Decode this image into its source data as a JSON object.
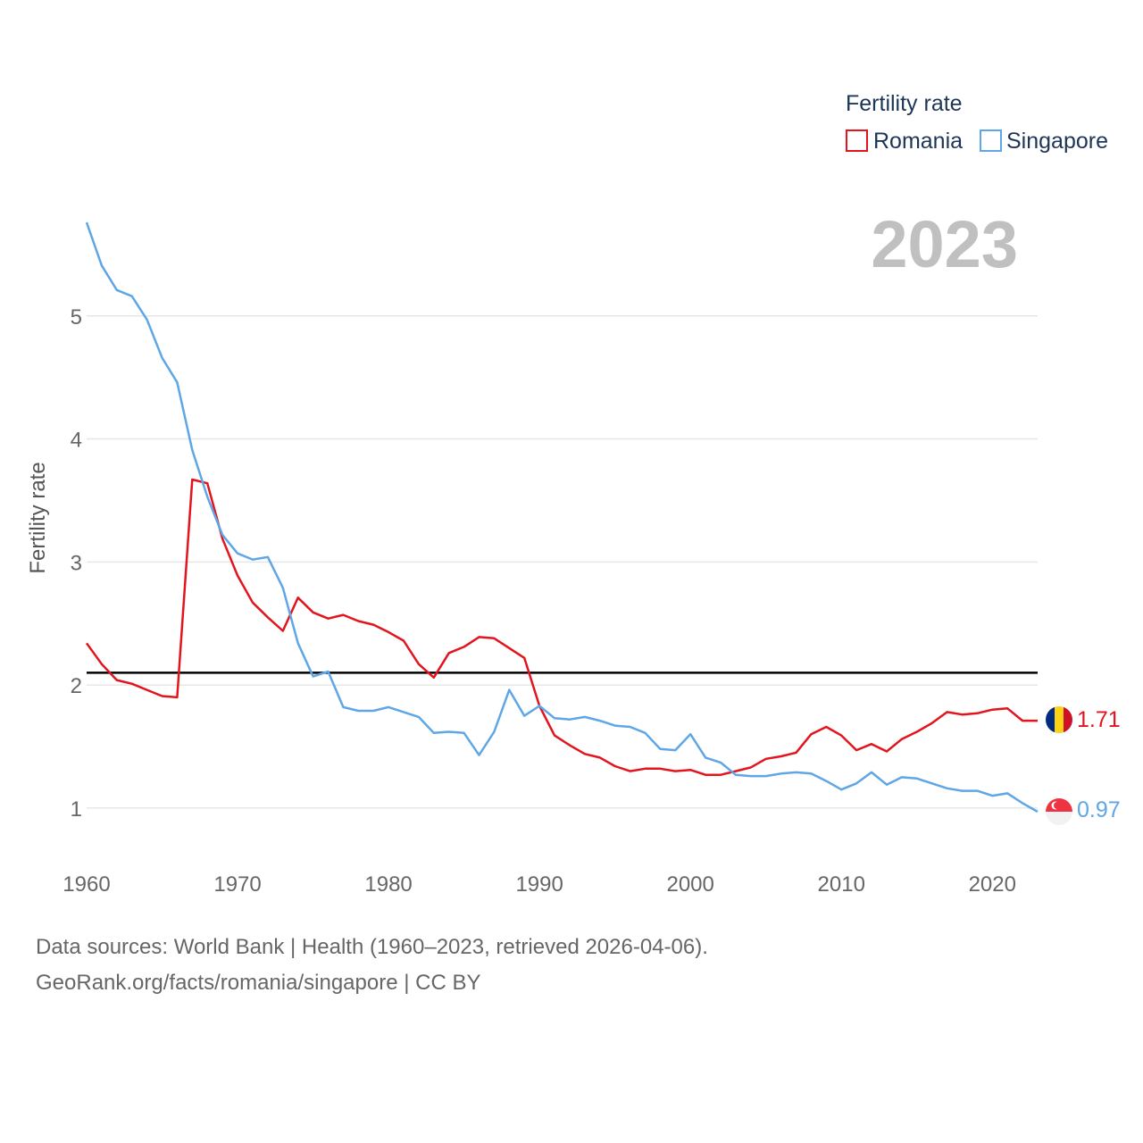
{
  "chart_data": {
    "type": "line",
    "ylabel": "Fertility rate",
    "xlabel": "",
    "legend_title": "Fertility rate",
    "legend_position": "top-right",
    "year_label": "2023",
    "xlim": [
      1960,
      2023
    ],
    "ylim": [
      0.6,
      6
    ],
    "x_ticks": [
      1960,
      1970,
      1980,
      1990,
      2000,
      2010,
      2020
    ],
    "y_ticks": [
      1,
      2,
      3,
      4,
      5
    ],
    "reference_line": 2.1,
    "x": [
      1960,
      1961,
      1962,
      1963,
      1964,
      1965,
      1966,
      1967,
      1968,
      1969,
      1970,
      1971,
      1972,
      1973,
      1974,
      1975,
      1976,
      1977,
      1978,
      1979,
      1980,
      1981,
      1982,
      1983,
      1984,
      1985,
      1986,
      1987,
      1988,
      1989,
      1990,
      1991,
      1992,
      1993,
      1994,
      1995,
      1996,
      1997,
      1998,
      1999,
      2000,
      2001,
      2002,
      2003,
      2004,
      2005,
      2006,
      2007,
      2008,
      2009,
      2010,
      2011,
      2012,
      2013,
      2014,
      2015,
      2016,
      2017,
      2018,
      2019,
      2020,
      2021,
      2022,
      2023
    ],
    "series": [
      {
        "name": "Romania",
        "color": "#e3141d",
        "end_label": "1.71",
        "values": [
          2.34,
          2.17,
          2.04,
          2.01,
          1.96,
          1.91,
          1.9,
          3.67,
          3.64,
          3.19,
          2.89,
          2.67,
          2.55,
          2.44,
          2.71,
          2.59,
          2.54,
          2.57,
          2.52,
          2.49,
          2.43,
          2.36,
          2.17,
          2.06,
          2.26,
          2.31,
          2.39,
          2.38,
          2.3,
          2.22,
          1.83,
          1.59,
          1.51,
          1.44,
          1.41,
          1.34,
          1.3,
          1.32,
          1.32,
          1.3,
          1.31,
          1.27,
          1.27,
          1.3,
          1.33,
          1.4,
          1.42,
          1.45,
          1.6,
          1.66,
          1.59,
          1.47,
          1.52,
          1.46,
          1.56,
          1.62,
          1.69,
          1.78,
          1.76,
          1.77,
          1.8,
          1.81,
          1.71,
          1.71
        ]
      },
      {
        "name": "Singapore",
        "color": "#5ea6e6",
        "end_label": "0.97",
        "values": [
          5.76,
          5.41,
          5.21,
          5.16,
          4.97,
          4.66,
          4.46,
          3.91,
          3.53,
          3.22,
          3.07,
          3.02,
          3.04,
          2.79,
          2.34,
          2.07,
          2.11,
          1.82,
          1.79,
          1.79,
          1.82,
          1.78,
          1.74,
          1.61,
          1.62,
          1.61,
          1.43,
          1.62,
          1.96,
          1.75,
          1.83,
          1.73,
          1.72,
          1.74,
          1.71,
          1.67,
          1.66,
          1.61,
          1.48,
          1.47,
          1.6,
          1.41,
          1.37,
          1.27,
          1.26,
          1.26,
          1.28,
          1.29,
          1.28,
          1.22,
          1.15,
          1.2,
          1.29,
          1.19,
          1.25,
          1.24,
          1.2,
          1.16,
          1.14,
          1.14,
          1.1,
          1.12,
          1.04,
          0.97
        ]
      }
    ]
  },
  "footer": {
    "line1": "Data sources: World Bank | Health (1960–2023, retrieved 2026-04-06).",
    "line2": "GeoRank.org/facts/romania/singapore | CC BY"
  },
  "flags": {
    "romania": {
      "colors": [
        "#002b7f",
        "#fcd116",
        "#ce1126"
      ]
    },
    "singapore": {
      "colors": [
        "#ef3340",
        "#f2f2f2",
        "#ffffff"
      ]
    }
  }
}
